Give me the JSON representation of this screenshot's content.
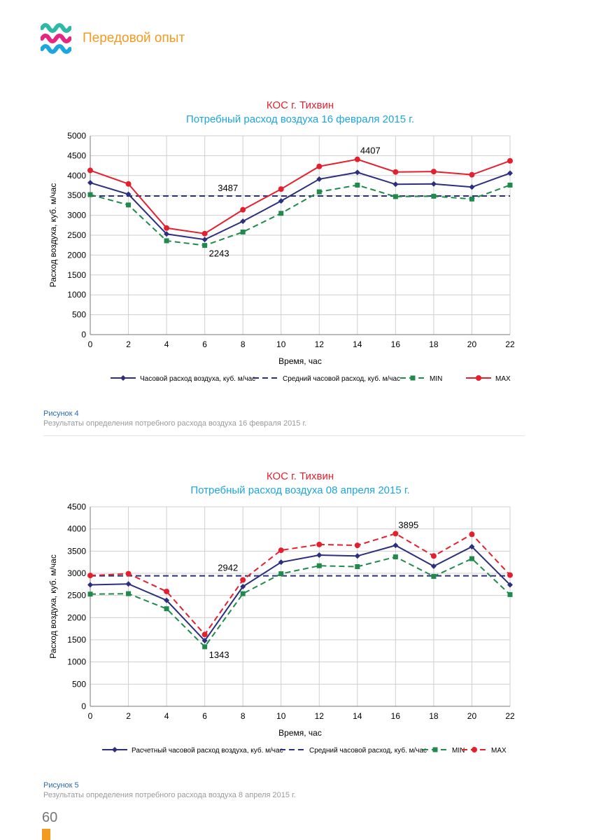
{
  "header": {
    "title": "Передовой опыт",
    "logo_colors": [
      "#2eb8a6",
      "#e5277f",
      "#1aa6df"
    ]
  },
  "figures": [
    {
      "label": "Рисунок 4",
      "caption": "Результаты определения потребного расхода воздуха 16 февраля 2015 г."
    },
    {
      "label": "Рисунок 5",
      "caption": "Результаты определения потребного расхода воздуха 8 апреля 2015 г."
    }
  ],
  "page_number": "60",
  "chart_data": [
    {
      "type": "line",
      "title": "КОС г. Тихвин",
      "subtitle": "Потребный расход воздуха 16 февраля 2015 г.",
      "title_color": "#e5202e",
      "subtitle_color": "#1aa6df",
      "xlabel": "Время, час",
      "ylabel": "Расход воздуха, куб. м/час",
      "x": [
        0,
        2,
        4,
        6,
        8,
        10,
        12,
        14,
        16,
        18,
        20,
        22
      ],
      "xlim": [
        0,
        22
      ],
      "ylim": [
        0,
        5000
      ],
      "yticks": [
        0,
        500,
        1000,
        1500,
        2000,
        2500,
        3000,
        3500,
        4000,
        4500,
        5000
      ],
      "grid": true,
      "legend_position": "bottom",
      "series": [
        {
          "name": "Часовой расход воздуха, куб. м/час",
          "color": "#2b2f7e",
          "style": "solid",
          "marker": "diamond",
          "values": [
            3820,
            3530,
            2530,
            2390,
            2850,
            3360,
            3910,
            4080,
            3780,
            3790,
            3710,
            4060
          ]
        },
        {
          "name": "Средний часовой расход, куб. м/час",
          "color": "#2b2f7e",
          "style": "dashed",
          "marker": "none",
          "values": [
            3487,
            3487,
            3487,
            3487,
            3487,
            3487,
            3487,
            3487,
            3487,
            3487,
            3487,
            3487
          ]
        },
        {
          "name": "MIN",
          "color": "#1f8a4c",
          "style": "dashed",
          "marker": "square",
          "values": [
            3520,
            3260,
            2360,
            2243,
            2580,
            3050,
            3590,
            3760,
            3470,
            3480,
            3410,
            3760
          ]
        },
        {
          "name": "MAX",
          "color": "#e5202e",
          "style": "solid",
          "marker": "circle",
          "values": [
            4130,
            3790,
            2680,
            2540,
            3140,
            3660,
            4230,
            4407,
            4090,
            4100,
            4020,
            4370
          ]
        }
      ],
      "annotations": [
        {
          "text": "3487",
          "x": 6.5,
          "y": 3487
        },
        {
          "text": "2243",
          "x": 6,
          "y": 2243
        },
        {
          "text": "4407",
          "x": 14,
          "y": 4407
        }
      ]
    },
    {
      "type": "line",
      "title": "КОС г. Тихвин",
      "subtitle": "Потребный расход воздуха 08 апреля 2015 г.",
      "title_color": "#e5202e",
      "subtitle_color": "#1aa6df",
      "xlabel": "Время, час",
      "ylabel": "Расход воздуха, куб. м/час",
      "x": [
        0,
        2,
        4,
        6,
        8,
        10,
        12,
        14,
        16,
        18,
        20,
        22
      ],
      "xlim": [
        0,
        22
      ],
      "ylim": [
        0,
        4500
      ],
      "yticks": [
        0,
        500,
        1000,
        1500,
        2000,
        2500,
        3000,
        3500,
        4000,
        4500
      ],
      "grid": true,
      "legend_position": "bottom",
      "series": [
        {
          "name": "Расчетный часовой расход воздуха, куб. м/час",
          "color": "#2b2f7e",
          "style": "solid",
          "marker": "diamond",
          "values": [
            2740,
            2760,
            2390,
            1480,
            2700,
            3250,
            3410,
            3390,
            3630,
            3160,
            3600,
            2740
          ]
        },
        {
          "name": "Средний часовой расход, куб. м/час",
          "color": "#2b2f7e",
          "style": "dashed",
          "marker": "none",
          "values": [
            2942,
            2942,
            2942,
            2942,
            2942,
            2942,
            2942,
            2942,
            2942,
            2942,
            2942,
            2942
          ]
        },
        {
          "name": "MIN",
          "color": "#1f8a4c",
          "style": "dashed",
          "marker": "square",
          "values": [
            2530,
            2540,
            2200,
            1343,
            2540,
            2990,
            3170,
            3150,
            3370,
            2930,
            3330,
            2520
          ]
        },
        {
          "name": "MAX",
          "color": "#e5202e",
          "style": "dashed",
          "marker": "circle",
          "values": [
            2950,
            2990,
            2590,
            1620,
            2850,
            3520,
            3650,
            3630,
            3895,
            3390,
            3880,
            2960
          ]
        }
      ],
      "annotations": [
        {
          "text": "2942",
          "x": 6.5,
          "y": 2942
        },
        {
          "text": "1343",
          "x": 6,
          "y": 1343
        },
        {
          "text": "3895",
          "x": 16,
          "y": 3895
        }
      ]
    }
  ]
}
